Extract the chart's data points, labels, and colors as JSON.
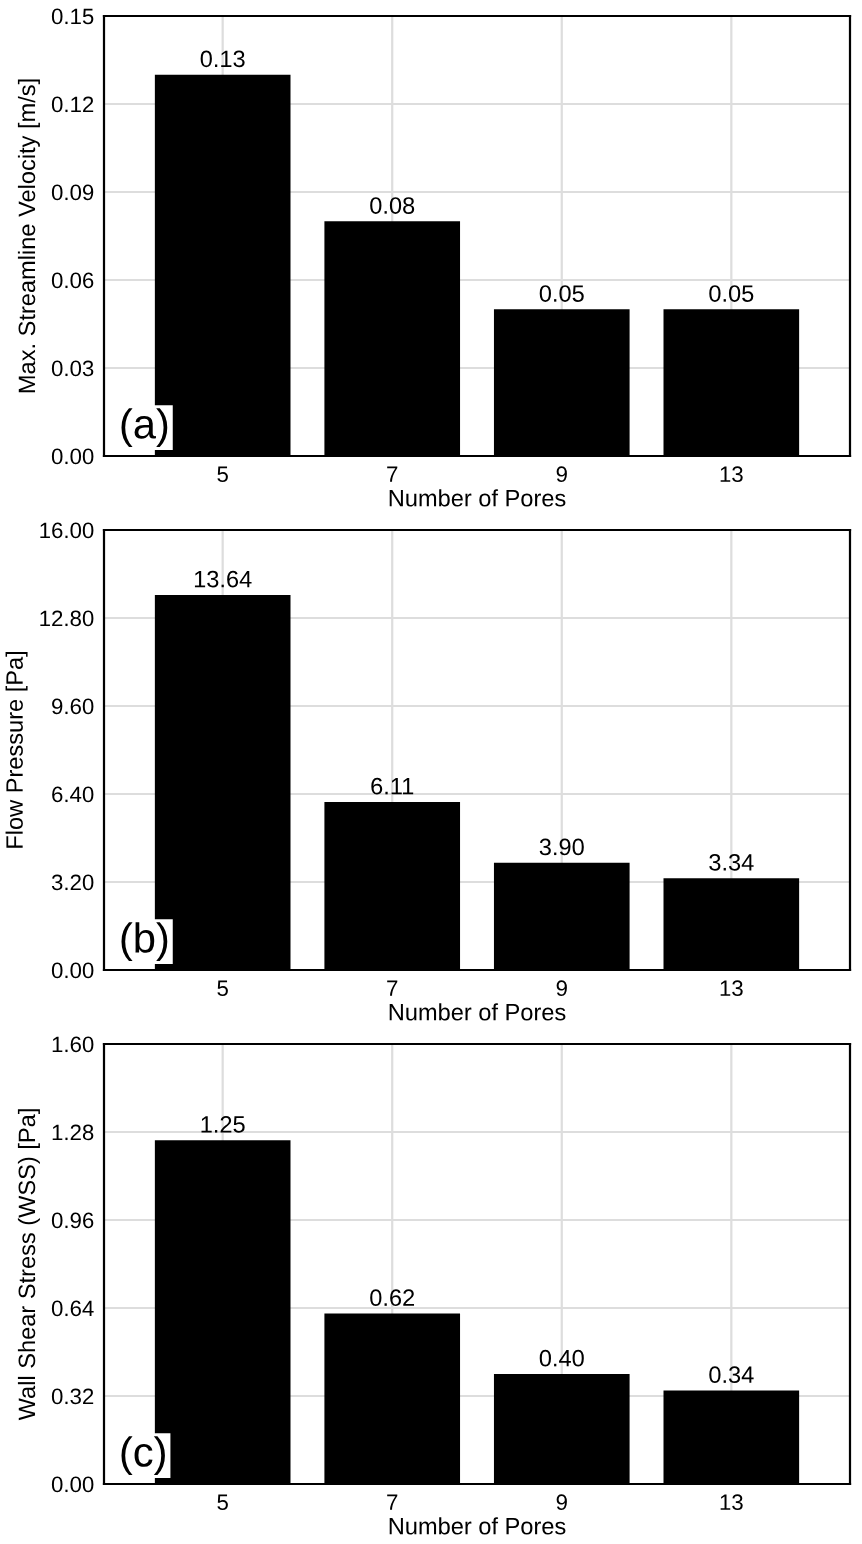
{
  "chart_data": [
    {
      "type": "bar",
      "xlabel": "Number of Pores",
      "ylabel": "Max. Streamline Velocity [m/s]",
      "categories": [
        "5",
        "7",
        "9",
        "13"
      ],
      "values": [
        0.13,
        0.08,
        0.05,
        0.05
      ],
      "value_labels": [
        "0.13",
        "0.08",
        "0.05",
        "0.05"
      ],
      "color": "#000000",
      "ylim": [
        0,
        0.15
      ],
      "yticks": [
        {
          "value": 0,
          "label": "0.00"
        },
        {
          "value": 0.03,
          "label": "0.03"
        },
        {
          "value": 0.06,
          "label": "0.06"
        },
        {
          "value": 0.09,
          "label": "0.09"
        },
        {
          "value": 0.12,
          "label": "0.12"
        },
        {
          "value": 0.15,
          "label": "0.15"
        }
      ],
      "grid": true,
      "annotations": [
        "(a)"
      ]
    },
    {
      "type": "bar",
      "xlabel": "Number of Pores",
      "ylabel": "Flow Pressure [Pa]",
      "categories": [
        "5",
        "7",
        "9",
        "13"
      ],
      "values": [
        13.64,
        6.11,
        3.9,
        3.34
      ],
      "value_labels": [
        "13.64",
        "6.11",
        "3.90",
        "3.34"
      ],
      "color": "#000000",
      "ylim": [
        0,
        16
      ],
      "yticks": [
        {
          "value": 0,
          "label": "0.00"
        },
        {
          "value": 3.2,
          "label": "3.20"
        },
        {
          "value": 6.4,
          "label": "6.40"
        },
        {
          "value": 9.6,
          "label": "9.60"
        },
        {
          "value": 12.8,
          "label": "12.80"
        },
        {
          "value": 16,
          "label": "16.00"
        }
      ],
      "grid": true,
      "annotations": [
        "(b)"
      ]
    },
    {
      "type": "bar",
      "xlabel": "Number of Pores",
      "ylabel": "Wall Shear Stress (WSS) [Pa]",
      "categories": [
        "5",
        "7",
        "9",
        "13"
      ],
      "values": [
        1.25,
        0.62,
        0.4,
        0.34
      ],
      "value_labels": [
        "1.25",
        "0.62",
        "0.40",
        "0.34"
      ],
      "color": "#000000",
      "ylim": [
        0,
        1.6
      ],
      "yticks": [
        {
          "value": 0,
          "label": "0.00"
        },
        {
          "value": 0.32,
          "label": "0.32"
        },
        {
          "value": 0.64,
          "label": "0.64"
        },
        {
          "value": 0.96,
          "label": "0.96"
        },
        {
          "value": 1.28,
          "label": "1.28"
        },
        {
          "value": 1.6,
          "label": "1.60"
        }
      ],
      "grid": true,
      "annotations": [
        "(c)"
      ]
    }
  ]
}
